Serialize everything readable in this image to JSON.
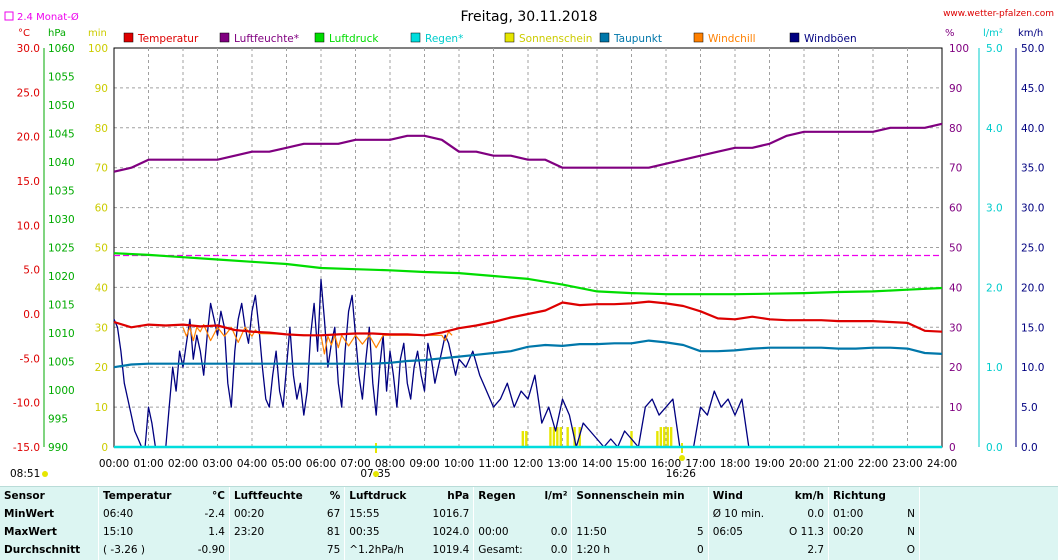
{
  "title": "Freitag, 30.11.2018",
  "site": "www.wetter-pfalzen.com",
  "month_avg_label": "2.4 Monat-Ø",
  "left_units": [
    "°C",
    "hPa",
    "min"
  ],
  "right_units": [
    "%",
    "l/m²",
    "km/h"
  ],
  "bottom_left_time": "08:51",
  "sunrise": "07:35",
  "sunset": "16:26",
  "colors": {
    "temp": "#dd0000",
    "hum": "#800080",
    "press": "#00dd00",
    "rain": "#00dddd",
    "sun": "#e6e600",
    "dew": "#0077aa",
    "chill": "#ff8000",
    "gust": "#000080",
    "month_avg": "#ee00ee",
    "grid": "#a0a0a0"
  },
  "chart_data": {
    "type": "line",
    "title": "Freitag, 30.11.2018",
    "x_ticks": [
      "00:00",
      "01:00",
      "02:00",
      "03:00",
      "04:00",
      "05:00",
      "06:00",
      "07:00",
      "08:00",
      "09:00",
      "10:00",
      "11:00",
      "12:00",
      "13:00",
      "14:00",
      "15:00",
      "16:00",
      "17:00",
      "18:00",
      "19:00",
      "20:00",
      "21:00",
      "22:00",
      "23:00",
      "24:00"
    ],
    "axes": {
      "temp": {
        "label": "°C",
        "range": [
          -15,
          30
        ],
        "ticks": [
          "30.0",
          "25.0",
          "20.0",
          "15.0",
          "10.0",
          "5.0",
          "0.0",
          "-5.0",
          "-10.0",
          "-15.0"
        ]
      },
      "press": {
        "label": "hPa",
        "range": [
          990,
          1060
        ],
        "ticks": [
          "1060",
          "1055",
          "1050",
          "1045",
          "1040",
          "1035",
          "1030",
          "1025",
          "1020",
          "1015",
          "1010",
          "1005",
          "1000",
          "995",
          "990"
        ]
      },
      "sun": {
        "label": "min",
        "range": [
          0,
          100
        ],
        "ticks": [
          "100",
          "90",
          "80",
          "70",
          "60",
          "50",
          "40",
          "30",
          "20",
          "10",
          "0"
        ]
      },
      "hum": {
        "label": "%",
        "range": [
          0,
          100
        ],
        "ticks": [
          "100",
          "90",
          "80",
          "70",
          "60",
          "50",
          "40",
          "30",
          "20",
          "10",
          "0"
        ]
      },
      "rain": {
        "label": "l/m²",
        "range": [
          0,
          5
        ],
        "ticks": [
          "5.0",
          "4.0",
          "3.0",
          "2.0",
          "1.0",
          "0.0"
        ]
      },
      "wind": {
        "label": "km/h",
        "range": [
          0,
          50
        ],
        "ticks": [
          "50.0",
          "45.0",
          "40.0",
          "35.0",
          "30.0",
          "25.0",
          "20.0",
          "15.0",
          "10.0",
          "5.0",
          "0.0"
        ]
      }
    },
    "legend": [
      "Temperatur",
      "Luftfeuchte*",
      "Luftdruck",
      "Regen*",
      "Sonnenschein",
      "Taupunkt",
      "Windchill",
      "Windböen"
    ],
    "month_avg_rain": 2.4,
    "series": [
      {
        "name": "Temperatur",
        "axis": "temp",
        "x": [
          0,
          0.5,
          1,
          1.5,
          2,
          2.5,
          3,
          3.5,
          4,
          4.5,
          5,
          5.5,
          6,
          6.5,
          7,
          7.5,
          8,
          8.5,
          9,
          9.5,
          10,
          10.5,
          11,
          11.5,
          12,
          12.5,
          13,
          13.5,
          14,
          14.5,
          15,
          15.5,
          16,
          16.5,
          17,
          17.5,
          18,
          18.5,
          19,
          19.5,
          20,
          20.5,
          21,
          21.5,
          22,
          22.5,
          23,
          23.5,
          24
        ],
        "y": [
          -0.9,
          -1.5,
          -1.2,
          -1.3,
          -1.2,
          -1.4,
          -1.3,
          -1.8,
          -2.0,
          -2.1,
          -2.3,
          -2.4,
          -2.4,
          -2.3,
          -2.2,
          -2.2,
          -2.3,
          -2.3,
          -2.4,
          -2.1,
          -1.6,
          -1.3,
          -0.9,
          -0.4,
          0.0,
          0.4,
          1.3,
          1.0,
          1.1,
          1.1,
          1.2,
          1.4,
          1.2,
          0.9,
          0.3,
          -0.5,
          -0.6,
          -0.3,
          -0.6,
          -0.7,
          -0.7,
          -0.7,
          -0.8,
          -0.8,
          -0.8,
          -0.9,
          -1.0,
          -1.9,
          -2.0
        ]
      },
      {
        "name": "Luftfeuchte*",
        "axis": "hum",
        "x": [
          0,
          0.5,
          1,
          1.5,
          2,
          2.5,
          3,
          3.5,
          4,
          4.5,
          5,
          5.5,
          6,
          6.5,
          7,
          7.5,
          8,
          8.5,
          9,
          9.5,
          10,
          10.5,
          11,
          11.5,
          12,
          12.5,
          13,
          13.5,
          14,
          14.5,
          15,
          15.5,
          16,
          16.5,
          17,
          17.5,
          18,
          18.5,
          19,
          19.5,
          20,
          20.5,
          21,
          21.5,
          22,
          22.5,
          23,
          23.5,
          24
        ],
        "y": [
          69,
          70,
          72,
          72,
          72,
          72,
          72,
          73,
          74,
          74,
          75,
          76,
          76,
          76,
          77,
          77,
          77,
          78,
          78,
          77,
          74,
          74,
          73,
          73,
          72,
          72,
          70,
          70,
          70,
          70,
          70,
          70,
          71,
          72,
          73,
          74,
          75,
          75,
          76,
          78,
          79,
          79,
          79,
          79,
          79,
          80,
          80,
          80,
          81
        ]
      },
      {
        "name": "Luftdruck",
        "axis": "press",
        "x": [
          0,
          1,
          2,
          3,
          4,
          5,
          6,
          7,
          8,
          9,
          10,
          11,
          12,
          13,
          14,
          15,
          16,
          17,
          18,
          19,
          20,
          21,
          22,
          23,
          24
        ],
        "y": [
          1024.0,
          1023.7,
          1023.3,
          1022.9,
          1022.5,
          1022.1,
          1021.4,
          1021.2,
          1021.0,
          1020.7,
          1020.5,
          1020.0,
          1019.5,
          1018.5,
          1017.3,
          1017.0,
          1016.8,
          1016.8,
          1016.8,
          1016.9,
          1017.0,
          1017.2,
          1017.3,
          1017.6,
          1017.9
        ]
      },
      {
        "name": "Regen*",
        "axis": "rain",
        "x": [
          0,
          24
        ],
        "y": [
          0,
          0
        ]
      },
      {
        "name": "Taupunkt",
        "axis": "temp",
        "x": [
          0,
          0.5,
          1,
          1.5,
          2,
          2.5,
          3,
          3.5,
          4,
          4.5,
          5,
          5.5,
          6,
          6.5,
          7,
          7.5,
          8,
          8.5,
          9,
          9.5,
          10,
          10.5,
          11,
          11.5,
          12,
          12.5,
          13,
          13.5,
          14,
          14.5,
          15,
          15.5,
          16,
          16.5,
          17,
          17.5,
          18,
          18.5,
          19,
          19.5,
          20,
          20.5,
          21,
          21.5,
          22,
          22.5,
          23,
          23.5,
          24
        ],
        "y": [
          -6.0,
          -5.7,
          -5.6,
          -5.6,
          -5.6,
          -5.6,
          -5.6,
          -5.6,
          -5.6,
          -5.6,
          -5.6,
          -5.6,
          -5.6,
          -5.6,
          -5.6,
          -5.6,
          -5.5,
          -5.3,
          -5.2,
          -5.0,
          -4.8,
          -4.6,
          -4.4,
          -4.2,
          -3.7,
          -3.5,
          -3.6,
          -3.4,
          -3.4,
          -3.3,
          -3.3,
          -3.0,
          -3.2,
          -3.5,
          -4.2,
          -4.2,
          -4.1,
          -3.9,
          -3.8,
          -3.8,
          -3.8,
          -3.8,
          -3.9,
          -3.9,
          -3.8,
          -3.8,
          -3.9,
          -4.4,
          -4.5
        ]
      },
      {
        "name": "Windchill",
        "axis": "temp",
        "x": [
          2.0,
          2.1,
          2.2,
          2.3,
          2.4,
          2.5,
          2.6,
          2.8,
          3.0,
          3.2,
          3.4,
          3.6,
          3.8,
          4.0,
          4.1,
          4.2,
          6.0,
          6.1,
          6.2,
          6.3,
          6.4,
          6.5,
          6.6,
          6.8,
          7.0,
          7.2,
          7.4,
          7.6,
          7.8,
          8.0,
          9.5,
          9.6,
          9.7,
          9.8
        ],
        "y": [
          -1.5,
          -2.5,
          -1.5,
          -3.0,
          -1.5,
          -2.0,
          -1.2,
          -3.0,
          -1.5,
          -2.5,
          -1.5,
          -3.2,
          -1.5,
          -2.5,
          -1.8,
          -2.2,
          -2.4,
          -4.5,
          -2.5,
          -3.5,
          -2.4,
          -3.8,
          -2.4,
          -3.6,
          -2.4,
          -3.4,
          -2.4,
          -3.8,
          -2.4,
          -2.4,
          -2.4,
          -3.0,
          -2.0,
          -2.4
        ]
      },
      {
        "name": "Windböen",
        "axis": "wind",
        "x": [
          0,
          0.1,
          0.2,
          0.3,
          0.4,
          0.5,
          0.6,
          0.7,
          0.8,
          0.9,
          1.0,
          1.1,
          1.2,
          1.3,
          1.4,
          1.5,
          1.6,
          1.7,
          1.8,
          1.9,
          2.0,
          2.1,
          2.2,
          2.3,
          2.4,
          2.5,
          2.6,
          2.7,
          2.8,
          2.9,
          3.0,
          3.1,
          3.2,
          3.3,
          3.4,
          3.5,
          3.6,
          3.7,
          3.8,
          3.9,
          4.0,
          4.1,
          4.2,
          4.3,
          4.4,
          4.5,
          4.6,
          4.7,
          4.8,
          4.9,
          5.0,
          5.1,
          5.2,
          5.3,
          5.4,
          5.5,
          5.6,
          5.7,
          5.8,
          5.9,
          6.0,
          6.1,
          6.2,
          6.3,
          6.4,
          6.5,
          6.6,
          6.7,
          6.8,
          6.9,
          7.0,
          7.1,
          7.2,
          7.3,
          7.4,
          7.5,
          7.6,
          7.7,
          7.8,
          7.9,
          8.0,
          8.1,
          8.2,
          8.3,
          8.4,
          8.5,
          8.6,
          8.7,
          8.8,
          8.9,
          9.0,
          9.1,
          9.2,
          9.3,
          9.4,
          9.5,
          9.6,
          9.7,
          9.8,
          9.9,
          10.0,
          10.2,
          10.4,
          10.6,
          10.8,
          11.0,
          11.2,
          11.4,
          11.6,
          11.8,
          12.0,
          12.2,
          12.4,
          12.6,
          12.8,
          13.0,
          13.2,
          13.4,
          13.6,
          13.8,
          14.0,
          14.2,
          14.4,
          14.6,
          14.8,
          15.0,
          15.2,
          15.4,
          15.6,
          15.8,
          16.0,
          16.2,
          16.4,
          16.6,
          16.8,
          17.0,
          17.2,
          17.4,
          17.6,
          17.8,
          18.0,
          18.2,
          18.4
        ],
        "y": [
          16,
          15,
          12,
          8,
          6,
          4,
          2,
          1,
          0,
          0,
          5,
          3,
          0,
          0,
          0,
          0,
          5,
          10,
          7,
          12,
          10,
          13,
          16,
          11,
          14,
          12,
          9,
          14,
          18,
          16,
          14,
          17,
          15,
          8,
          5,
          12,
          16,
          18,
          15,
          13,
          17,
          19,
          15,
          10,
          6,
          5,
          9,
          12,
          7,
          5,
          10,
          15,
          9,
          6,
          8,
          4,
          7,
          14,
          18,
          12,
          21,
          16,
          10,
          13,
          15,
          8,
          5,
          12,
          17,
          19,
          14,
          9,
          6,
          11,
          15,
          8,
          4,
          10,
          14,
          7,
          12,
          9,
          5,
          11,
          13,
          8,
          6,
          10,
          12,
          9,
          7,
          13,
          11,
          8,
          10,
          12,
          14,
          13,
          11,
          9,
          11,
          10,
          12,
          9,
          7,
          5,
          6,
          8,
          5,
          7,
          6,
          9,
          3,
          5,
          2,
          6,
          4,
          0,
          3,
          2,
          1,
          0,
          1,
          0,
          2,
          1,
          0,
          5,
          6,
          4,
          5,
          6,
          0,
          0,
          0,
          5,
          4,
          7,
          5,
          6,
          4,
          6,
          0
        ]
      }
    ],
    "sun_bars": [
      {
        "x": 11.85,
        "v": 4
      },
      {
        "x": 11.95,
        "v": 4
      },
      {
        "x": 12.65,
        "v": 5
      },
      {
        "x": 12.75,
        "v": 5
      },
      {
        "x": 12.85,
        "v": 5
      },
      {
        "x": 12.95,
        "v": 5
      },
      {
        "x": 13.15,
        "v": 5
      },
      {
        "x": 13.35,
        "v": 5
      },
      {
        "x": 13.5,
        "v": 5
      },
      {
        "x": 15.0,
        "v": 4
      },
      {
        "x": 15.75,
        "v": 4
      },
      {
        "x": 15.85,
        "v": 5
      },
      {
        "x": 15.95,
        "v": 5
      },
      {
        "x": 16.05,
        "v": 5
      },
      {
        "x": 16.15,
        "v": 5
      }
    ]
  },
  "stats": {
    "headers": {
      "sensor": "Sensor",
      "temp": "Temperatur",
      "temp_unit": "°C",
      "hum": "Luftfeuchte",
      "hum_unit": "%",
      "press": "Luftdruck",
      "press_unit": "hPa",
      "rain": "Regen",
      "rain_unit": "l/m²",
      "sun": "Sonnenschein min",
      "wind": "Wind",
      "wind_unit": "km/h",
      "dir": "Richtung"
    },
    "rows": [
      {
        "label": "MinWert",
        "t_time": "06:40",
        "t_val": "-2.4",
        "h_time": "00:20",
        "h_val": "67",
        "p_time": "15:55",
        "p_val": "1016.7",
        "r_time": "",
        "r_val": "",
        "s_time": "",
        "s_val": "",
        "w_time": "Ø 10 min.",
        "w_val": "0.0",
        "d_time": "01:00",
        "d_val": "N"
      },
      {
        "label": "MaxWert",
        "t_time": "15:10",
        "t_val": "1.4",
        "h_time": "23:20",
        "h_val": "81",
        "p_time": "00:35",
        "p_val": "1024.0",
        "r_time": "00:00",
        "r_val": "0.0",
        "s_time": "11:50",
        "s_val": "5",
        "w_time": "06:05",
        "w_val": "O 11.3",
        "d_time": "00:20",
        "d_val": "N"
      },
      {
        "label": "Durchschnitt",
        "t_time": "( -3.26 )",
        "t_val": "-0.90",
        "h_time": "",
        "h_val": "75",
        "p_time": "^1.2hPa/h",
        "p_val": "1019.4",
        "r_time": "Gesamt:",
        "r_val": "0.0",
        "s_time": "1:20 h",
        "s_val": "0",
        "w_time": "",
        "w_val": "2.7",
        "d_time": "",
        "d_val": "O"
      }
    ]
  }
}
